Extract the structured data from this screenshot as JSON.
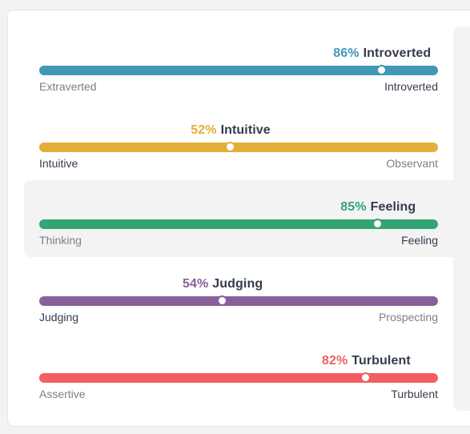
{
  "traits": [
    {
      "percent": "86%",
      "name": "Introverted",
      "value": 0.86,
      "color": "#4298b4",
      "left_label": "Extraverted",
      "right_label": "Introverted",
      "dominant": "right",
      "highlighted": false
    },
    {
      "percent": "52%",
      "name": "Intuitive",
      "value": 0.48,
      "color": "#e4ae3a",
      "left_label": "Intuitive",
      "right_label": "Observant",
      "dominant": "left",
      "highlighted": false
    },
    {
      "percent": "85%",
      "name": "Feeling",
      "value": 0.85,
      "color": "#33a474",
      "left_label": "Thinking",
      "right_label": "Feeling",
      "dominant": "right",
      "highlighted": true
    },
    {
      "percent": "54%",
      "name": "Judging",
      "value": 0.46,
      "color": "#88619a",
      "left_label": "Judging",
      "right_label": "Prospecting",
      "dominant": "left",
      "highlighted": false
    },
    {
      "percent": "82%",
      "name": "Turbulent",
      "value": 0.82,
      "color": "#f25e62",
      "left_label": "Assertive",
      "right_label": "Turbulent",
      "dominant": "right",
      "highlighted": false
    }
  ]
}
